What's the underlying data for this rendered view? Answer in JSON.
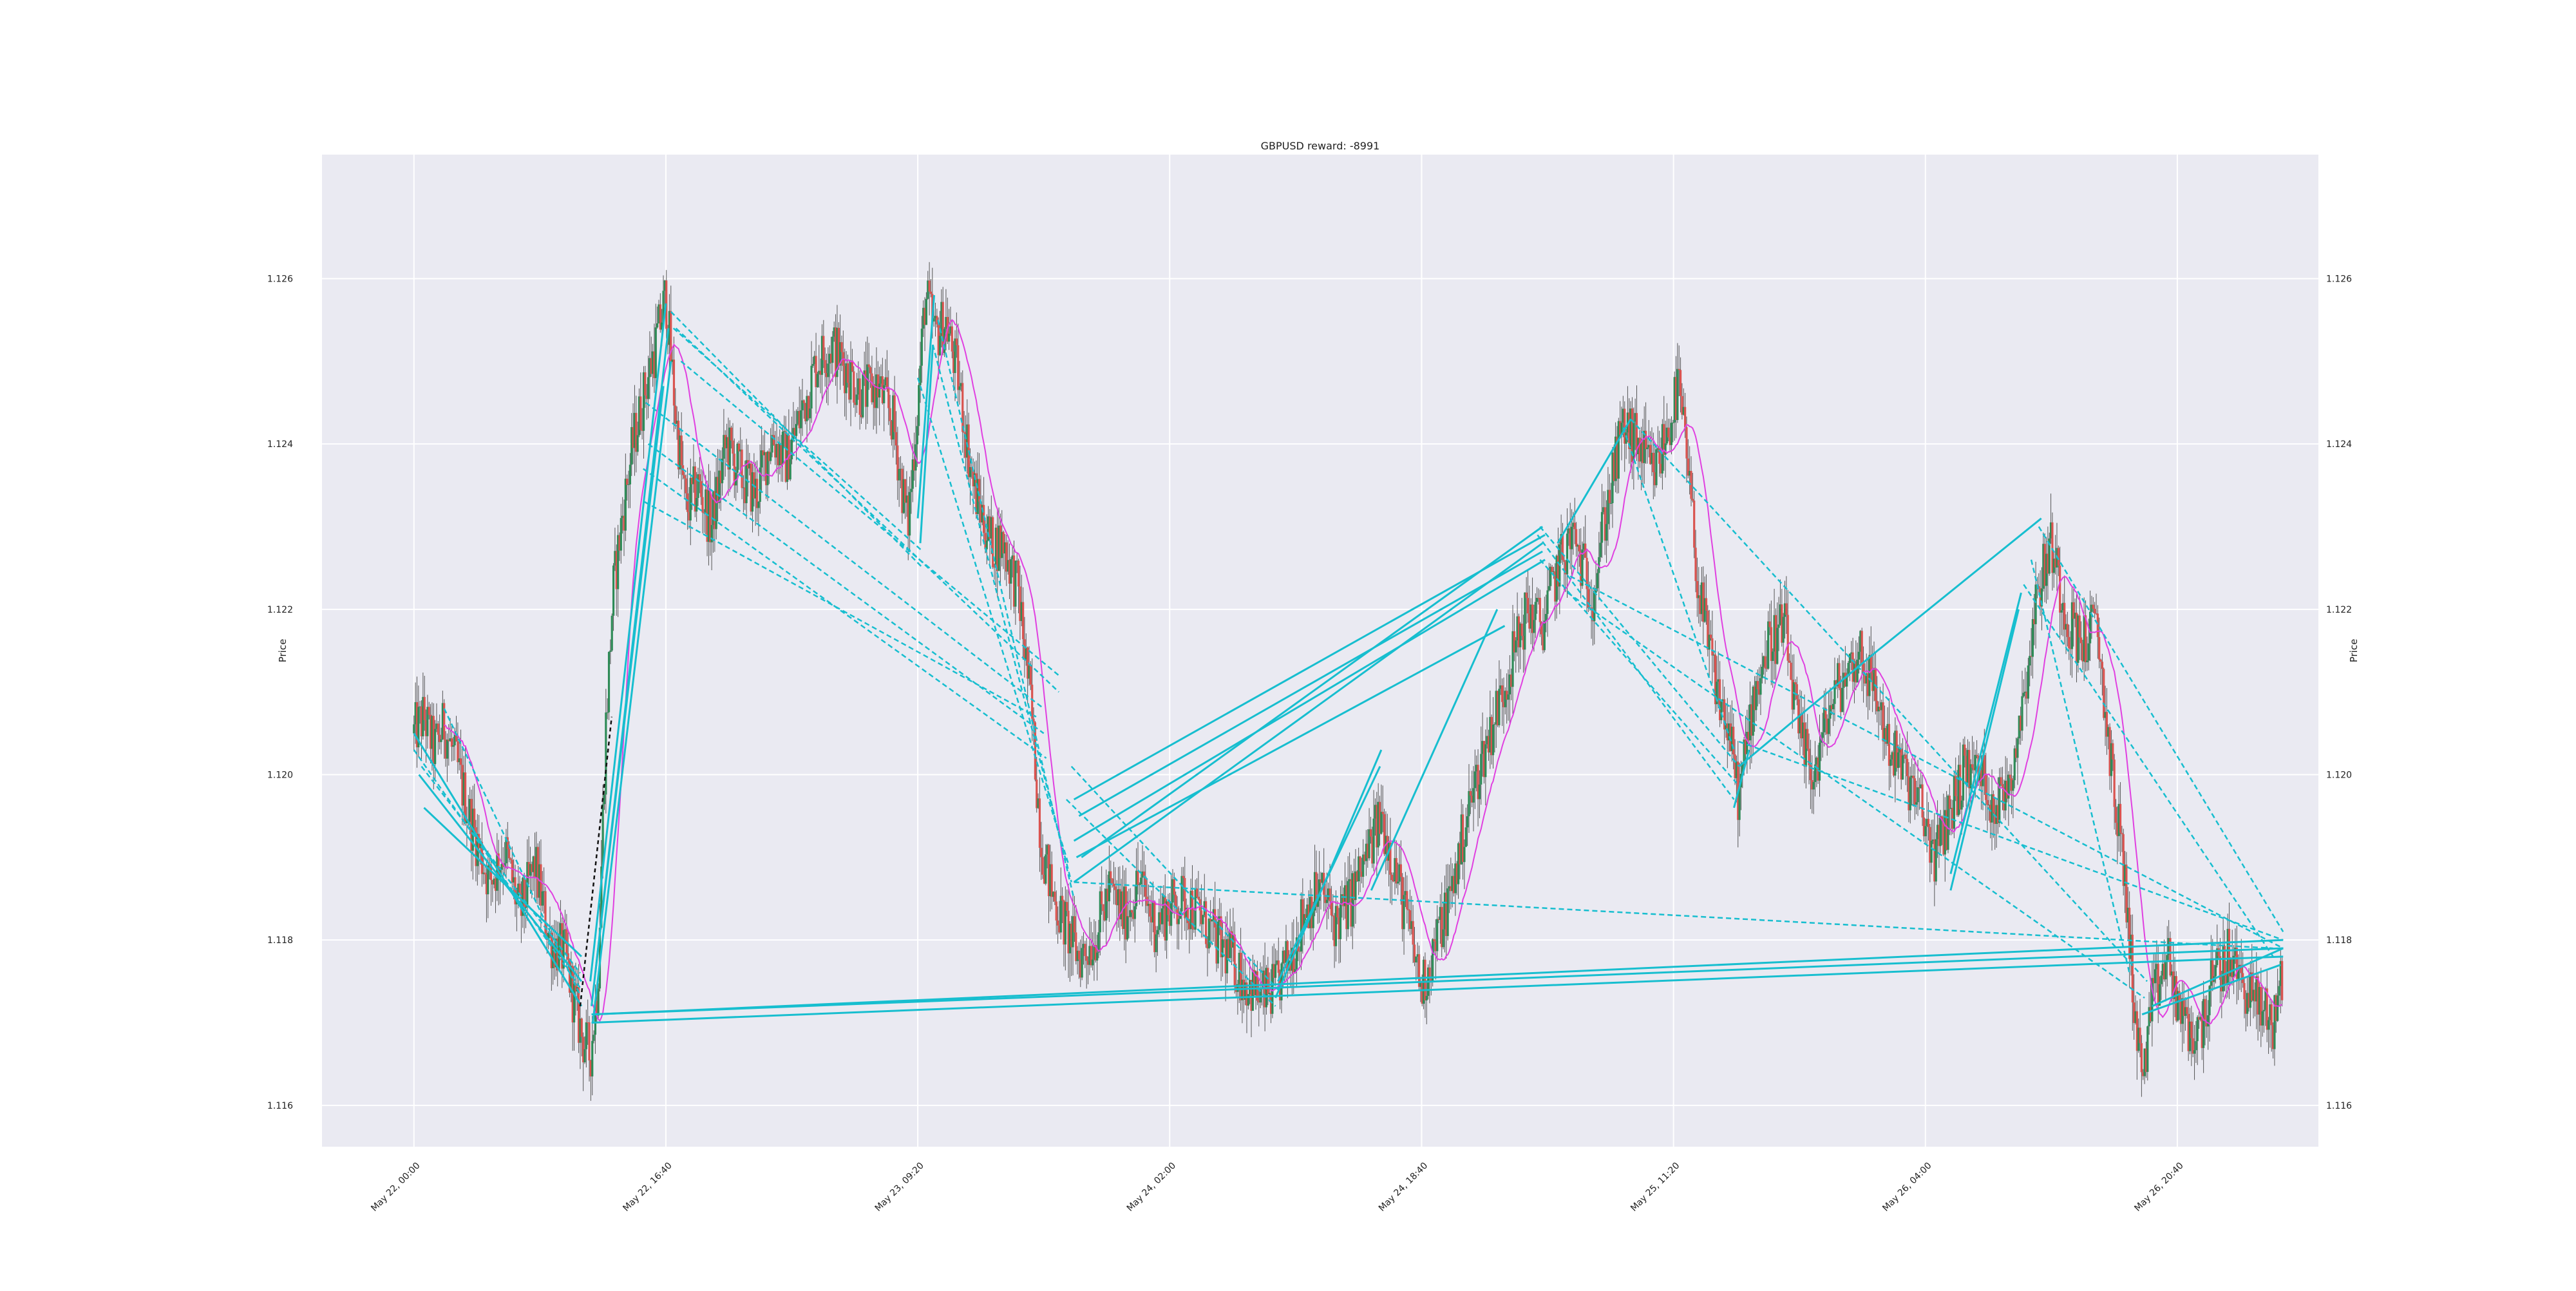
{
  "chart_data": {
    "type": "candlestick",
    "title": "GBPUSD reward: -8991",
    "ylabel_left": "Price",
    "ylabel_right": "Price",
    "xlabel": "",
    "ylim": [
      1.1155,
      1.1275
    ],
    "yticks": [
      "1.116",
      "1.118",
      "1.120",
      "1.122",
      "1.124",
      "1.126"
    ],
    "ytick_values": [
      1.116,
      1.118,
      1.12,
      1.122,
      1.124,
      1.126
    ],
    "xticks": [
      "May 22, 00:00",
      "May 22, 16:40",
      "May 23, 09:20",
      "May 24, 02:00",
      "May 24, 18:40",
      "May 25, 11:20",
      "May 26, 04:00",
      "May 26, 20:40"
    ],
    "xtick_minutes": [
      0,
      1000,
      2000,
      3000,
      4000,
      5000,
      6000,
      7000
    ],
    "xlim_minutes": [
      -365,
      7560
    ],
    "grid": true,
    "colors": {
      "background": "#eaeaf2",
      "grid": "#ffffff",
      "up_candle": "#2e8b57",
      "down_candle": "#d9534f",
      "moving_average": "#e040e0",
      "trade_line": "#17becf",
      "losing_line": "#111111"
    },
    "price_path": [
      [
        0,
        1.1205
      ],
      [
        40,
        1.1207
      ],
      [
        80,
        1.1203
      ],
      [
        120,
        1.1206
      ],
      [
        170,
        1.1201
      ],
      [
        230,
        1.1194
      ],
      [
        300,
        1.1187
      ],
      [
        360,
        1.1191
      ],
      [
        420,
        1.1183
      ],
      [
        480,
        1.1189
      ],
      [
        540,
        1.118
      ],
      [
        600,
        1.1178
      ],
      [
        640,
        1.1172
      ],
      [
        670,
        1.1168
      ],
      [
        700,
        1.1166
      ],
      [
        730,
        1.1175
      ],
      [
        760,
        1.1205
      ],
      [
        790,
        1.1222
      ],
      [
        830,
        1.1232
      ],
      [
        870,
        1.124
      ],
      [
        920,
        1.1247
      ],
      [
        960,
        1.1252
      ],
      [
        1000,
        1.1258
      ],
      [
        1040,
        1.1243
      ],
      [
        1080,
        1.1232
      ],
      [
        1130,
        1.1235
      ],
      [
        1180,
        1.123
      ],
      [
        1240,
        1.124
      ],
      [
        1300,
        1.1236
      ],
      [
        1360,
        1.1234
      ],
      [
        1420,
        1.1241
      ],
      [
        1480,
        1.1238
      ],
      [
        1540,
        1.1244
      ],
      [
        1600,
        1.125
      ],
      [
        1660,
        1.1252
      ],
      [
        1720,
        1.1249
      ],
      [
        1780,
        1.1246
      ],
      [
        1840,
        1.1247
      ],
      [
        1900,
        1.1243
      ],
      [
        1960,
        1.123
      ],
      [
        2000,
        1.1245
      ],
      [
        2030,
        1.1258
      ],
      [
        2070,
        1.1253
      ],
      [
        2110,
        1.1255
      ],
      [
        2160,
        1.1248
      ],
      [
        2220,
        1.1235
      ],
      [
        2290,
        1.1228
      ],
      [
        2340,
        1.1228
      ],
      [
        2400,
        1.1222
      ],
      [
        2450,
        1.1208
      ],
      [
        2490,
        1.1192
      ],
      [
        2530,
        1.1186
      ],
      [
        2580,
        1.1182
      ],
      [
        2640,
        1.1178
      ],
      [
        2700,
        1.118
      ],
      [
        2760,
        1.1186
      ],
      [
        2820,
        1.1183
      ],
      [
        2880,
        1.1187
      ],
      [
        2940,
        1.1182
      ],
      [
        3000,
        1.1184
      ],
      [
        3060,
        1.1185
      ],
      [
        3120,
        1.1183
      ],
      [
        3180,
        1.118
      ],
      [
        3240,
        1.1178
      ],
      [
        3300,
        1.1175
      ],
      [
        3360,
        1.1173
      ],
      [
        3420,
        1.1174
      ],
      [
        3480,
        1.1178
      ],
      [
        3540,
        1.1184
      ],
      [
        3600,
        1.1186
      ],
      [
        3660,
        1.1182
      ],
      [
        3720,
        1.1185
      ],
      [
        3780,
        1.119
      ],
      [
        3840,
        1.1195
      ],
      [
        3900,
        1.1188
      ],
      [
        3960,
        1.118
      ],
      [
        4000,
        1.1174
      ],
      [
        4060,
        1.118
      ],
      [
        4120,
        1.1186
      ],
      [
        4180,
        1.1195
      ],
      [
        4240,
        1.1202
      ],
      [
        4300,
        1.1208
      ],
      [
        4360,
        1.1214
      ],
      [
        4420,
        1.122
      ],
      [
        4480,
        1.1218
      ],
      [
        4540,
        1.1225
      ],
      [
        4600,
        1.1229
      ],
      [
        4640,
        1.1225
      ],
      [
        4680,
        1.1222
      ],
      [
        4720,
        1.123
      ],
      [
        4760,
        1.1236
      ],
      [
        4800,
        1.1242
      ],
      [
        4860,
        1.124
      ],
      [
        4920,
        1.1236
      ],
      [
        4980,
        1.1242
      ],
      [
        5020,
        1.1247
      ],
      [
        5060,
        1.1236
      ],
      [
        5100,
        1.1222
      ],
      [
        5160,
        1.1212
      ],
      [
        5220,
        1.1205
      ],
      [
        5260,
        1.1197
      ],
      [
        5320,
        1.121
      ],
      [
        5380,
        1.1216
      ],
      [
        5440,
        1.1218
      ],
      [
        5500,
        1.1204
      ],
      [
        5560,
        1.12
      ],
      [
        5620,
        1.1208
      ],
      [
        5680,
        1.1212
      ],
      [
        5740,
        1.1215
      ],
      [
        5800,
        1.121
      ],
      [
        5860,
        1.1203
      ],
      [
        5920,
        1.12
      ],
      [
        5980,
        1.1196
      ],
      [
        6040,
        1.119
      ],
      [
        6100,
        1.1196
      ],
      [
        6160,
        1.1201
      ],
      [
        6220,
        1.12
      ],
      [
        6280,
        1.1196
      ],
      [
        6340,
        1.12
      ],
      [
        6400,
        1.1212
      ],
      [
        6450,
        1.1223
      ],
      [
        6500,
        1.1228
      ],
      [
        6560,
        1.1219
      ],
      [
        6620,
        1.1216
      ],
      [
        6680,
        1.1218
      ],
      [
        6740,
        1.12
      ],
      [
        6790,
        1.1188
      ],
      [
        6830,
        1.1172
      ],
      [
        6860,
        1.1163
      ],
      [
        6900,
        1.1172
      ],
      [
        6960,
        1.1178
      ],
      [
        7020,
        1.117
      ],
      [
        7080,
        1.1168
      ],
      [
        7140,
        1.1175
      ],
      [
        7200,
        1.1178
      ],
      [
        7260,
        1.1175
      ],
      [
        7320,
        1.1172
      ],
      [
        7380,
        1.117
      ],
      [
        7400,
        1.1174
      ],
      [
        7420,
        1.1175
      ]
    ],
    "trade_lines_solid": [
      [
        [
          0,
          1.1205
        ],
        [
          665,
          1.1172
        ]
      ],
      [
        [
          20,
          1.12
        ],
        [
          665,
          1.1175
        ]
      ],
      [
        [
          40,
          1.1196
        ],
        [
          665,
          1.1178
        ]
      ],
      [
        [
          705,
          1.1171
        ],
        [
          7420,
          1.1179
        ]
      ],
      [
        [
          705,
          1.117
        ],
        [
          7420,
          1.1178
        ]
      ],
      [
        [
          710,
          1.1171
        ],
        [
          7420,
          1.118
        ]
      ],
      [
        [
          700,
          1.1175
        ],
        [
          1000,
          1.1257
        ]
      ],
      [
        [
          705,
          1.1172
        ],
        [
          1010,
          1.1254
        ]
      ],
      [
        [
          710,
          1.117
        ],
        [
          1020,
          1.125
        ]
      ],
      [
        [
          720,
          1.1176
        ],
        [
          990,
          1.1247
        ]
      ],
      [
        [
          2000,
          1.1231
        ],
        [
          2065,
          1.1258
        ]
      ],
      [
        [
          2010,
          1.1228
        ],
        [
          2060,
          1.1252
        ]
      ],
      [
        [
          2620,
          1.1197
        ],
        [
          4490,
          1.1229
        ]
      ],
      [
        [
          2640,
          1.1195
        ],
        [
          4480,
          1.1227
        ]
      ],
      [
        [
          2620,
          1.1192
        ],
        [
          4490,
          1.1226
        ]
      ],
      [
        [
          2650,
          1.119
        ],
        [
          4480,
          1.123
        ]
      ],
      [
        [
          2620,
          1.1187
        ],
        [
          4480,
          1.1228
        ]
      ],
      [
        [
          2630,
          1.119
        ],
        [
          4330,
          1.1218
        ]
      ],
      [
        [
          3420,
          1.1173
        ],
        [
          3840,
          1.1203
        ]
      ],
      [
        [
          3430,
          1.1175
        ],
        [
          3835,
          1.1201
        ]
      ],
      [
        [
          3800,
          1.1186
        ],
        [
          4300,
          1.122
        ]
      ],
      [
        [
          4540,
          1.1228
        ],
        [
          4830,
          1.1243
        ]
      ],
      [
        [
          5260,
          1.1201
        ],
        [
          5810,
          1.1215
        ]
      ],
      [
        [
          5810,
          1.1215
        ],
        [
          6460,
          1.1231
        ]
      ],
      [
        [
          5240,
          1.1196
        ],
        [
          5300,
          1.1203
        ]
      ],
      [
        [
          6100,
          1.1188
        ],
        [
          6380,
          1.1222
        ]
      ],
      [
        [
          6100,
          1.1186
        ],
        [
          6370,
          1.122
        ]
      ],
      [
        [
          6900,
          1.1172
        ],
        [
          7420,
          1.1179
        ]
      ],
      [
        [
          6860,
          1.1171
        ],
        [
          7410,
          1.1177
        ]
      ]
    ],
    "trade_lines_dashed": [
      [
        [
          0,
          1.1203
        ],
        [
          665,
          1.1174
        ]
      ],
      [
        [
          30,
          1.1201
        ],
        [
          660,
          1.1176
        ]
      ],
      [
        [
          120,
          1.1208
        ],
        [
          665,
          1.1173
        ]
      ],
      [
        [
          1020,
          1.1256
        ],
        [
          2020,
          1.1225
        ]
      ],
      [
        [
          1030,
          1.1254
        ],
        [
          2020,
          1.1227
        ]
      ],
      [
        [
          1040,
          1.1254
        ],
        [
          2560,
          1.121
        ]
      ],
      [
        [
          1060,
          1.125
        ],
        [
          2560,
          1.1212
        ]
      ],
      [
        [
          920,
          1.1245
        ],
        [
          2500,
          1.1208
        ]
      ],
      [
        [
          930,
          1.124
        ],
        [
          2500,
          1.1205
        ]
      ],
      [
        [
          910,
          1.1237
        ],
        [
          2510,
          1.1202
        ]
      ],
      [
        [
          915,
          1.1233
        ],
        [
          2470,
          1.1207
        ]
      ],
      [
        [
          2060,
          1.1252
        ],
        [
          2610,
          1.1187
        ]
      ],
      [
        [
          2080,
          1.1255
        ],
        [
          2620,
          1.1185
        ]
      ],
      [
        [
          2000,
          1.1248
        ],
        [
          2600,
          1.1189
        ]
      ],
      [
        [
          2590,
          1.1197
        ],
        [
          3420,
          1.1172
        ]
      ],
      [
        [
          2610,
          1.1201
        ],
        [
          3430,
          1.1174
        ]
      ],
      [
        [
          2620,
          1.1187
        ],
        [
          7380,
          1.1179
        ]
      ],
      [
        [
          4460,
          1.1229
        ],
        [
          5240,
          1.1197
        ]
      ],
      [
        [
          4470,
          1.123
        ],
        [
          5260,
          1.1201
        ]
      ],
      [
        [
          4470,
          1.1226
        ],
        [
          5250,
          1.1199
        ]
      ],
      [
        [
          4800,
          1.1242
        ],
        [
          5240,
          1.1203
        ]
      ],
      [
        [
          4580,
          1.1222
        ],
        [
          6870,
          1.1173
        ]
      ],
      [
        [
          4590,
          1.1224
        ],
        [
          7420,
          1.1179
        ]
      ],
      [
        [
          4830,
          1.1243
        ],
        [
          6880,
          1.1175
        ]
      ],
      [
        [
          5260,
          1.1204
        ],
        [
          7420,
          1.118
        ]
      ],
      [
        [
          6390,
          1.1223
        ],
        [
          7380,
          1.1178
        ]
      ],
      [
        [
          6420,
          1.1226
        ],
        [
          6810,
          1.1176
        ]
      ],
      [
        [
          6450,
          1.123
        ],
        [
          7420,
          1.1181
        ]
      ]
    ],
    "losing_line_dashed": [
      [
        [
          660,
          1.1172
        ],
        [
          785,
          1.1207
        ]
      ]
    ]
  }
}
